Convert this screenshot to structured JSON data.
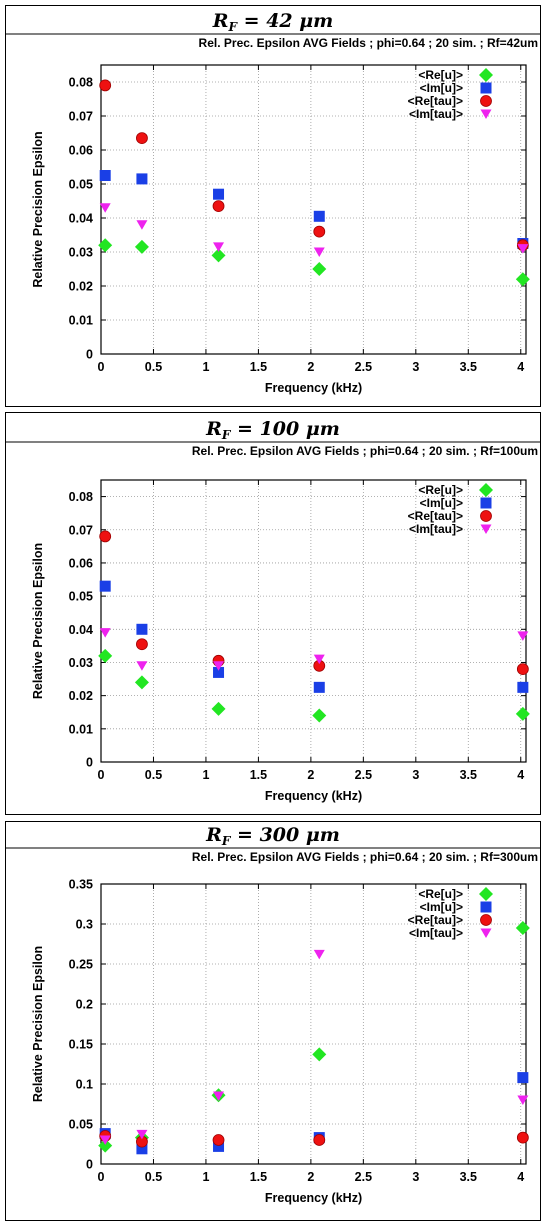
{
  "series_styles": [
    {
      "name": "<Re[u]>",
      "color": "#22e622",
      "marker": "diamond"
    },
    {
      "name": "<Im[u]>",
      "color": "#1a3fe6",
      "marker": "square"
    },
    {
      "name": "<Re[tau]>",
      "color": "#ee1111",
      "marker": "circle"
    },
    {
      "name": "<Im[tau]>",
      "color": "#ee22ee",
      "marker": "triangle-down"
    }
  ],
  "chart_data": [
    {
      "type": "scatter",
      "panel_title": "R_F = 42 μm",
      "panel_title_main": "R",
      "panel_title_sub": "F",
      "panel_title_rest": " = 42 μm",
      "title": "Rel. Prec. Epsilon AVG Fields ; phi=0.64 ; 20 sim. ; Rf=42um",
      "xlabel": "Frequency (kHz)",
      "ylabel": "Relative Precision Epsilon",
      "xlim": [
        0,
        4.05
      ],
      "ylim": [
        0,
        0.085
      ],
      "xticks": [
        0,
        0.5,
        1,
        1.5,
        2,
        2.5,
        3,
        3.5,
        4
      ],
      "xtick_labels": [
        "0",
        "0.5",
        "1",
        "1.5",
        "2",
        "2.5",
        "3",
        "3.5",
        "4"
      ],
      "yticks": [
        0,
        0.01,
        0.02,
        0.03,
        0.04,
        0.05,
        0.06,
        0.07,
        0.08
      ],
      "ytick_labels": [
        "0",
        "0.01",
        "0.02",
        "0.03",
        "0.04",
        "0.05",
        "0.06",
        "0.07",
        "0.08"
      ],
      "grid": true,
      "legend_position": "top-right",
      "x": [
        0.04,
        0.39,
        1.12,
        2.08,
        4.02
      ],
      "series": [
        {
          "name": "<Re[u]>",
          "values": [
            0.032,
            0.0315,
            0.029,
            0.025,
            0.022
          ]
        },
        {
          "name": "<Im[u]>",
          "values": [
            0.0525,
            0.0515,
            0.047,
            0.0405,
            0.0325
          ]
        },
        {
          "name": "<Re[tau]>",
          "values": [
            0.079,
            0.0635,
            0.0435,
            0.036,
            0.032
          ]
        },
        {
          "name": "<Im[tau]>",
          "values": [
            0.043,
            0.038,
            0.0315,
            0.03,
            0.031
          ]
        }
      ]
    },
    {
      "type": "scatter",
      "panel_title": "R_F = 100 μm",
      "panel_title_main": "R",
      "panel_title_sub": "F",
      "panel_title_rest": " = 100 μm",
      "title": "Rel. Prec. Epsilon AVG Fields ; phi=0.64 ; 20 sim. ; Rf=100um",
      "xlabel": "Frequency (kHz)",
      "ylabel": "Relative Precision Epsilon",
      "xlim": [
        0,
        4.05
      ],
      "ylim": [
        0,
        0.085
      ],
      "xticks": [
        0,
        0.5,
        1,
        1.5,
        2,
        2.5,
        3,
        3.5,
        4
      ],
      "xtick_labels": [
        "0",
        "0.5",
        "1",
        "1.5",
        "2",
        "2.5",
        "3",
        "3.5",
        "4"
      ],
      "yticks": [
        0,
        0.01,
        0.02,
        0.03,
        0.04,
        0.05,
        0.06,
        0.07,
        0.08
      ],
      "ytick_labels": [
        "0",
        "0.01",
        "0.02",
        "0.03",
        "0.04",
        "0.05",
        "0.06",
        "0.07",
        "0.08"
      ],
      "grid": true,
      "legend_position": "top-right",
      "x": [
        0.04,
        0.39,
        1.12,
        2.08,
        4.02
      ],
      "series": [
        {
          "name": "<Re[u]>",
          "values": [
            0.032,
            0.024,
            0.016,
            0.014,
            0.0145
          ]
        },
        {
          "name": "<Im[u]>",
          "values": [
            0.053,
            0.04,
            0.027,
            0.0225,
            0.0225
          ]
        },
        {
          "name": "<Re[tau]>",
          "values": [
            0.068,
            0.0355,
            0.0305,
            0.029,
            0.028
          ]
        },
        {
          "name": "<Im[tau]>",
          "values": [
            0.039,
            0.029,
            0.029,
            0.031,
            0.038
          ]
        }
      ]
    },
    {
      "type": "scatter",
      "panel_title": "R_F = 300 μm",
      "panel_title_main": "R",
      "panel_title_sub": "F",
      "panel_title_rest": " = 300 μm",
      "title": "Rel. Prec. Epsilon AVG Fields ; phi=0.64 ; 20 sim. ; Rf=300um",
      "xlabel": "Frequency (kHz)",
      "ylabel": "Relative Precision Epsilon",
      "xlim": [
        0,
        4.05
      ],
      "ylim": [
        0,
        0.35
      ],
      "xticks": [
        0,
        0.5,
        1,
        1.5,
        2,
        2.5,
        3,
        3.5,
        4
      ],
      "xtick_labels": [
        "0",
        "0.5",
        "1",
        "1.5",
        "2",
        "2.5",
        "3",
        "3.5",
        "4"
      ],
      "yticks": [
        0,
        0.05,
        0.1,
        0.15,
        0.2,
        0.25,
        0.3,
        0.35
      ],
      "ytick_labels": [
        "0",
        "0.05",
        "0.1",
        "0.15",
        "0.2",
        "0.25",
        "0.3",
        "0.35"
      ],
      "grid": true,
      "legend_position": "top-right",
      "x": [
        0.04,
        0.39,
        1.12,
        2.08,
        4.02
      ],
      "series": [
        {
          "name": "<Re[u]>",
          "values": [
            0.023,
            0.033,
            0.086,
            0.137,
            0.295
          ]
        },
        {
          "name": "<Im[u]>",
          "values": [
            0.038,
            0.019,
            0.022,
            0.033,
            0.108
          ]
        },
        {
          "name": "<Re[tau]>",
          "values": [
            0.035,
            0.028,
            0.03,
            0.03,
            0.033
          ]
        },
        {
          "name": "<Im[tau]>",
          "values": [
            0.03,
            0.037,
            0.085,
            0.262,
            0.08
          ]
        }
      ]
    }
  ]
}
